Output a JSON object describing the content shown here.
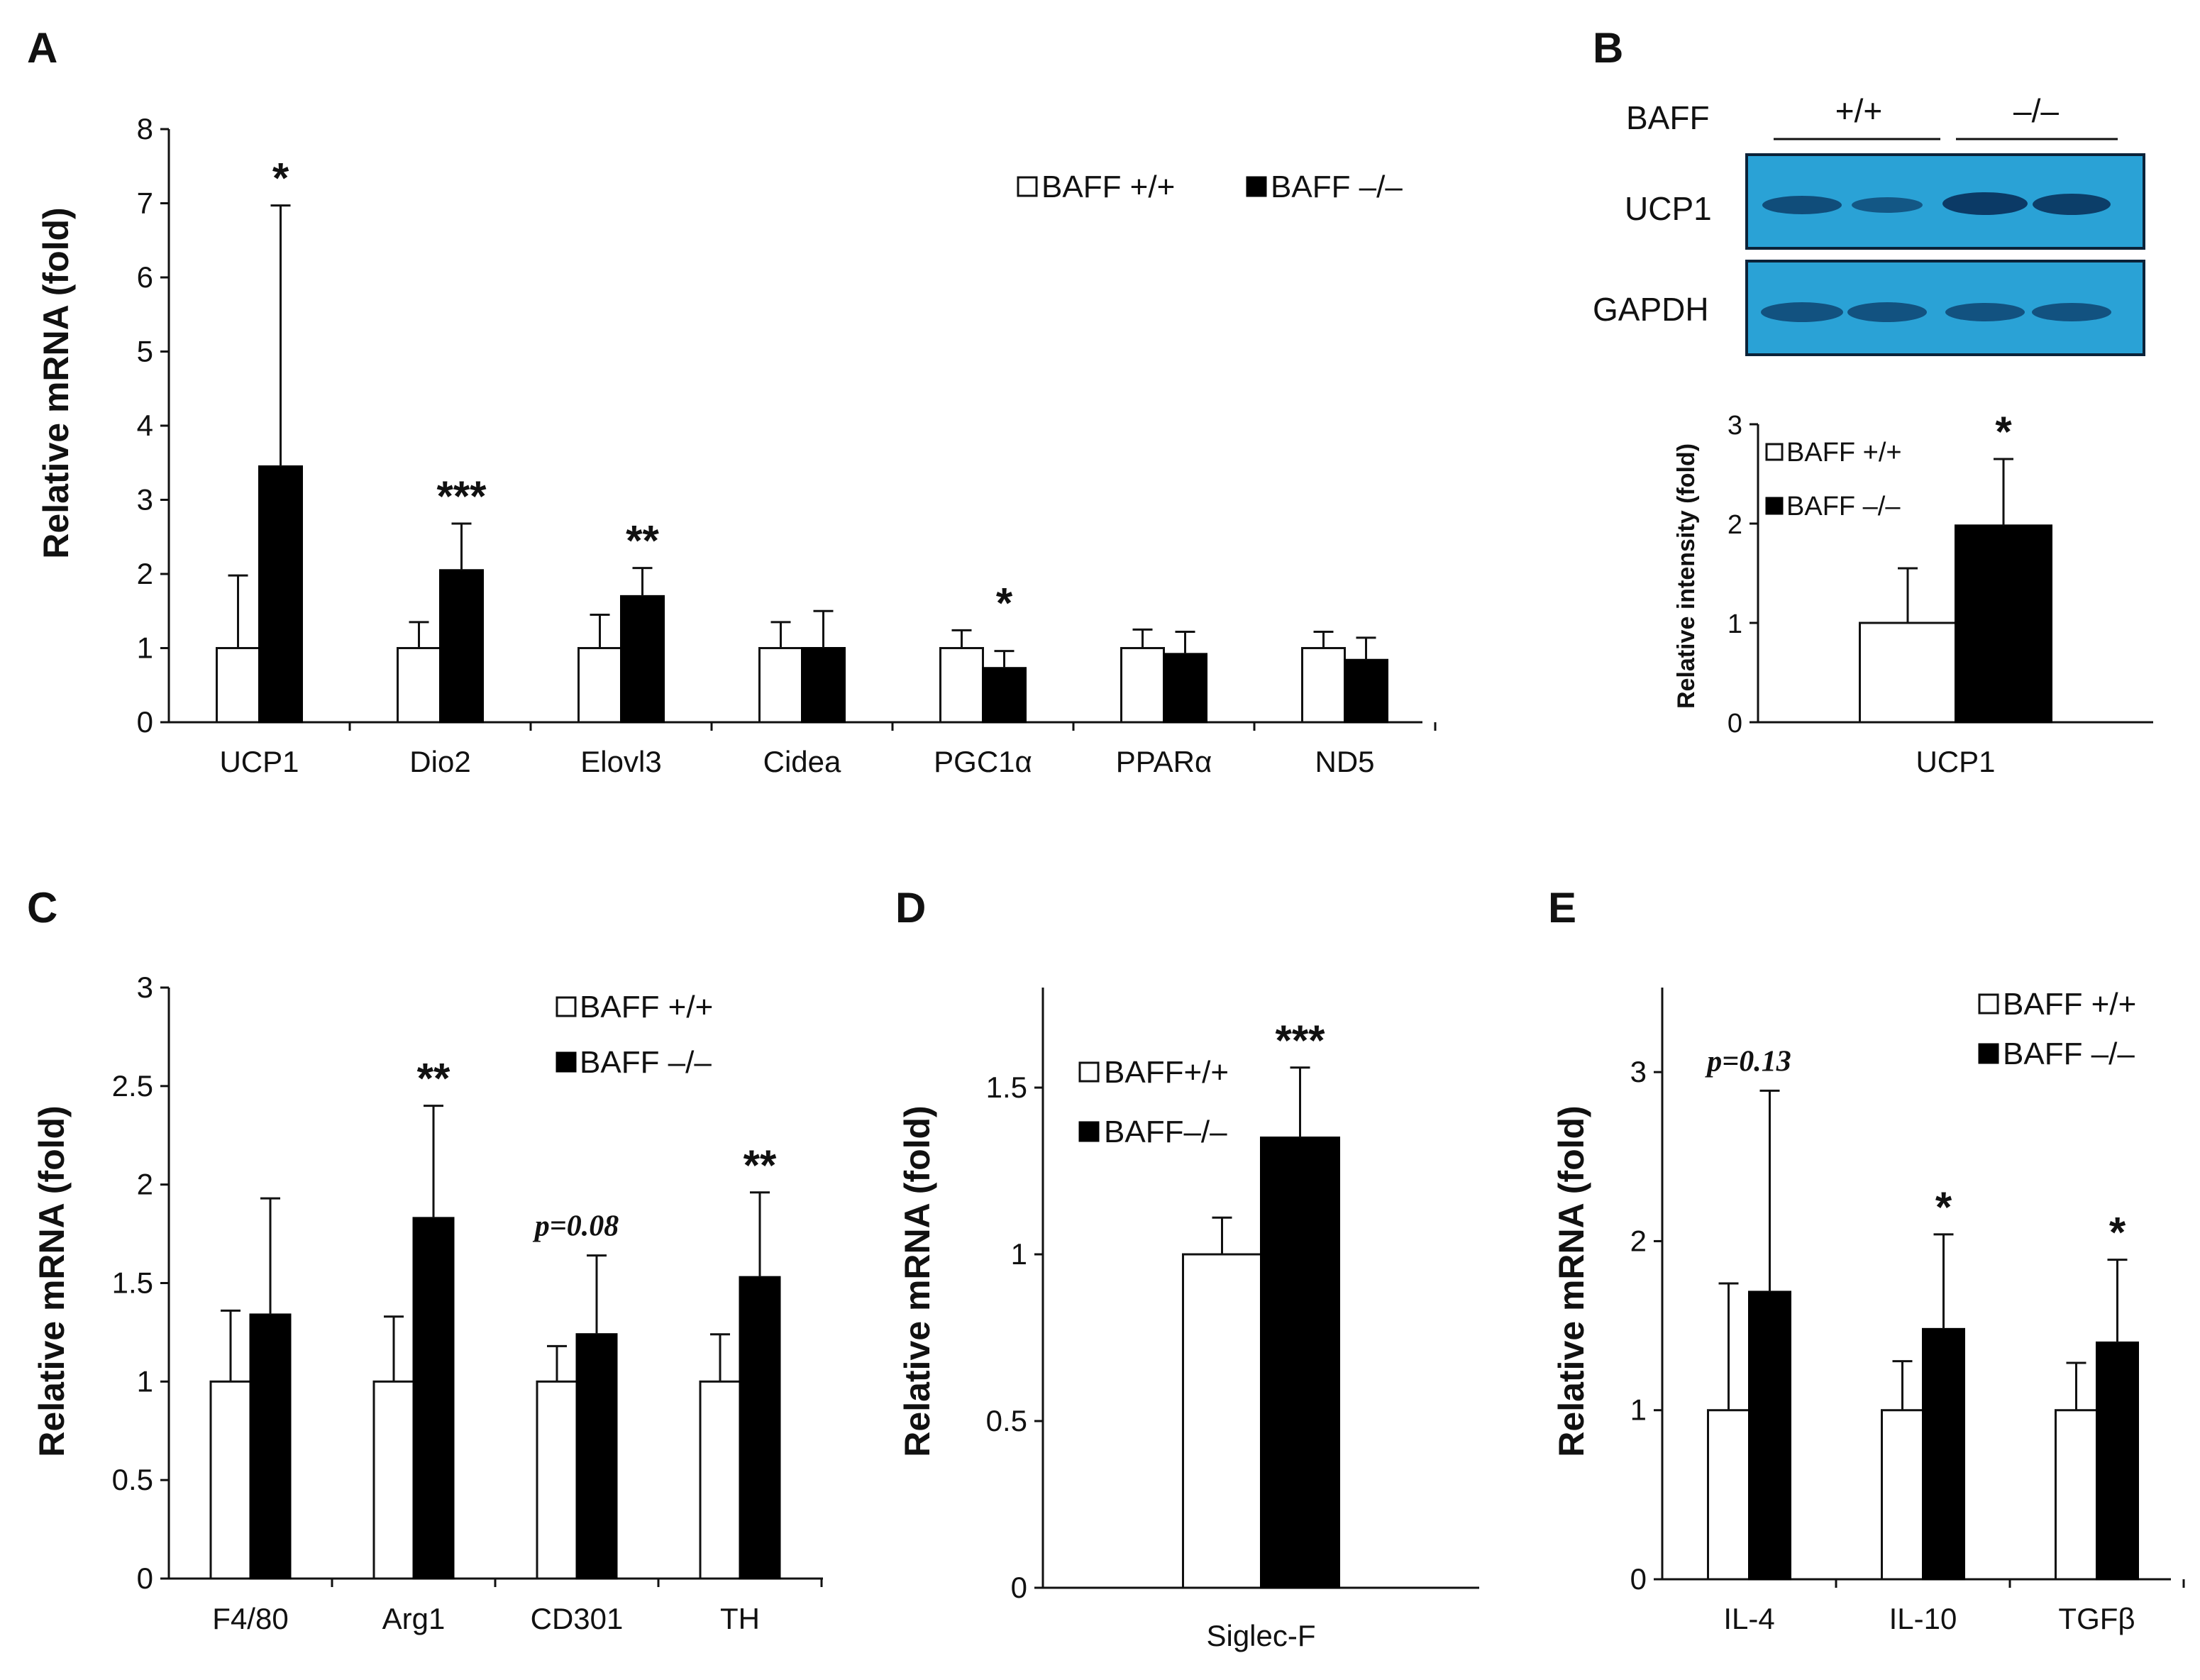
{
  "legend_labels": {
    "wt": "BAFF +/+",
    "ko": "BAFF –/–"
  },
  "legend_labels_compact": {
    "wt": "BAFF+/+",
    "ko": "BAFF–/–"
  },
  "colors": {
    "wt": "#ffffff",
    "ko": "#000000",
    "blot_bg": "#2aa2d6",
    "band": "#0c3e6a"
  },
  "blot": {
    "row_label_header": "BAFF",
    "group_wt": "+/+",
    "group_ko": "–/–",
    "band1_label": "UCP1",
    "band2_label": "GAPDH"
  },
  "chart_data": [
    {
      "panel": "A",
      "type": "bar",
      "ylabel": "Relative mRNA (fold)",
      "ylim": [
        0,
        8
      ],
      "yticks": [
        "0",
        "1",
        "2",
        "3",
        "4",
        "5",
        "6",
        "7",
        "8"
      ],
      "categories": [
        "UCP1",
        "Dio2",
        "Elovl3",
        "Cidea",
        "PGC1α",
        "PPARα",
        "ND5"
      ],
      "series": [
        {
          "name": "BAFF +/+",
          "values": [
            1.0,
            1.0,
            1.0,
            1.0,
            1.0,
            1.0,
            1.0
          ],
          "errors": [
            0.98,
            0.35,
            0.45,
            0.35,
            0.24,
            0.25,
            0.22
          ]
        },
        {
          "name": "BAFF –/–",
          "values": [
            3.45,
            2.05,
            1.7,
            1.0,
            0.73,
            0.92,
            0.84
          ],
          "errors": [
            3.52,
            0.63,
            0.38,
            0.5,
            0.23,
            0.3,
            0.3
          ]
        }
      ],
      "annotations": [
        "*",
        "***",
        "**",
        "",
        "*",
        "",
        ""
      ],
      "legend_position": "top-right"
    },
    {
      "panel": "B",
      "type": "bar",
      "ylabel": "Relative intensity (fold)",
      "ylim": [
        0,
        3
      ],
      "yticks": [
        "0",
        "1",
        "2",
        "3"
      ],
      "categories": [
        "UCP1"
      ],
      "series": [
        {
          "name": "BAFF +/+",
          "values": [
            1.0
          ],
          "errors": [
            0.55
          ]
        },
        {
          "name": "BAFF –/–",
          "values": [
            1.98
          ],
          "errors": [
            0.67
          ]
        }
      ],
      "annotations": [
        "*"
      ],
      "legend_position": "top-left"
    },
    {
      "panel": "C",
      "type": "bar",
      "ylabel": "Relative mRNA (fold)",
      "ylim": [
        0,
        3
      ],
      "yticks": [
        "0",
        "0.5",
        "1",
        "1.5",
        "2",
        "2.5",
        "3"
      ],
      "categories": [
        "F4/80",
        "Arg1",
        "CD301",
        "TH"
      ],
      "series": [
        {
          "name": "BAFF +/+",
          "values": [
            1.0,
            1.0,
            1.0,
            1.0
          ],
          "errors": [
            0.36,
            0.33,
            0.18,
            0.24
          ]
        },
        {
          "name": "BAFF –/–",
          "values": [
            1.34,
            1.83,
            1.24,
            1.53
          ],
          "errors": [
            0.59,
            0.57,
            0.4,
            0.43
          ]
        }
      ],
      "annotations": [
        "",
        "**",
        "p=0.08",
        "**"
      ],
      "legend_position": "top-right"
    },
    {
      "panel": "D",
      "type": "bar",
      "ylabel": "Relative mRNA (fold)",
      "ylim": [
        0,
        1.8
      ],
      "yticks": [
        "0",
        "0.5",
        "1",
        "1.5"
      ],
      "categories": [
        "Siglec-F"
      ],
      "series": [
        {
          "name": "BAFF+/+",
          "values": [
            1.0
          ],
          "errors": [
            0.11
          ]
        },
        {
          "name": "BAFF–/–",
          "values": [
            1.35
          ],
          "errors": [
            0.21
          ]
        }
      ],
      "annotations": [
        "***"
      ],
      "legend_position": "top-left"
    },
    {
      "panel": "E",
      "type": "bar",
      "ylabel": "Relative mRNA (fold)",
      "ylim": [
        0,
        3.5
      ],
      "yticks": [
        "0",
        "1",
        "2",
        "3"
      ],
      "categories": [
        "IL-4",
        "IL-10",
        "TGFβ"
      ],
      "series": [
        {
          "name": "BAFF +/+",
          "values": [
            1.0,
            1.0,
            1.0
          ],
          "errors": [
            0.75,
            0.29,
            0.28
          ]
        },
        {
          "name": "BAFF –/–",
          "values": [
            1.7,
            1.48,
            1.4
          ],
          "errors": [
            1.19,
            0.56,
            0.49
          ]
        }
      ],
      "annotations": [
        "p=0.13",
        "*",
        "*"
      ],
      "legend_position": "top-right"
    }
  ]
}
